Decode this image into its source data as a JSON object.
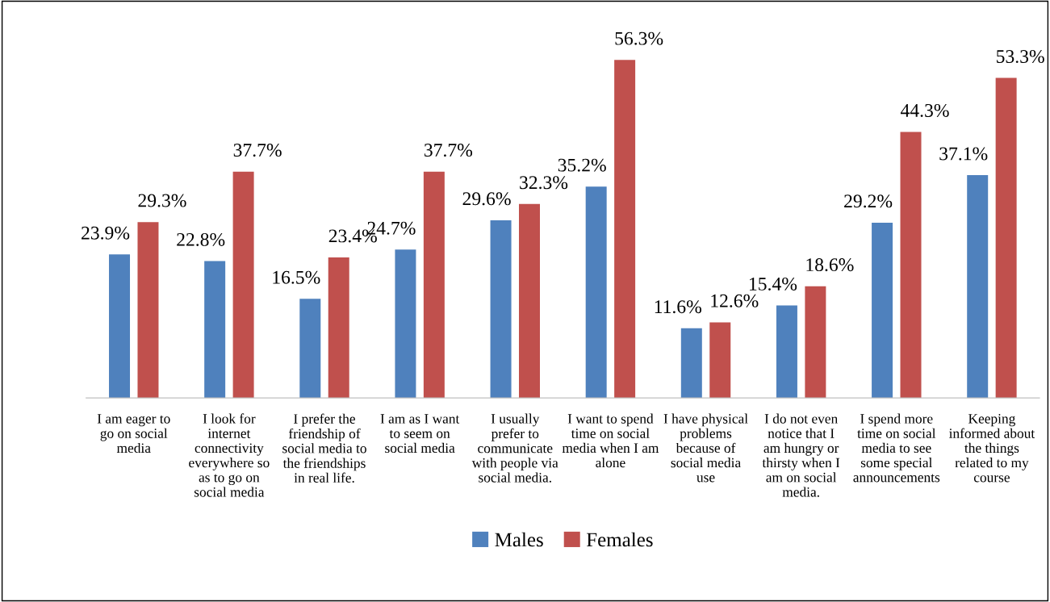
{
  "chart_data": {
    "type": "bar",
    "categories": [
      "I am eager to go on social media",
      "I look for internet connectivity everywhere so as to go on social media",
      "I prefer the friendship of social media to the friendships in real life.",
      "I am as I want to seem on social media",
      "I usually prefer to communicate with people via social media.",
      "I want to spend time on social media when I am alone",
      "I have physical problems because of social media use",
      "I do not even notice that I am hungry or thirsty when I am on social media.",
      "I spend more time on social media to see some special announcements",
      "Keeping informed about the things related to my course"
    ],
    "series": [
      {
        "name": "Males",
        "color": "#4f81bd",
        "values": [
          23.9,
          22.8,
          16.5,
          24.7,
          29.6,
          35.2,
          11.6,
          15.4,
          29.2,
          37.1
        ],
        "value_labels": [
          "23.9%",
          "22.8%",
          "16.5%",
          "24.7%",
          "29.6%",
          "35.2%",
          "11.6%",
          "15.4%",
          "29.2%",
          "37.1%"
        ]
      },
      {
        "name": "Females",
        "color": "#c0504d",
        "values": [
          29.3,
          37.7,
          23.4,
          37.7,
          32.3,
          56.3,
          12.6,
          18.6,
          44.3,
          53.3
        ],
        "value_labels": [
          "29.3%",
          "37.7%",
          "23.4%",
          "37.7%",
          "32.3%",
          "56.3%",
          "12.6%",
          "18.6%",
          "44.3%",
          "53.3%"
        ]
      }
    ],
    "legend": "bottom"
  }
}
